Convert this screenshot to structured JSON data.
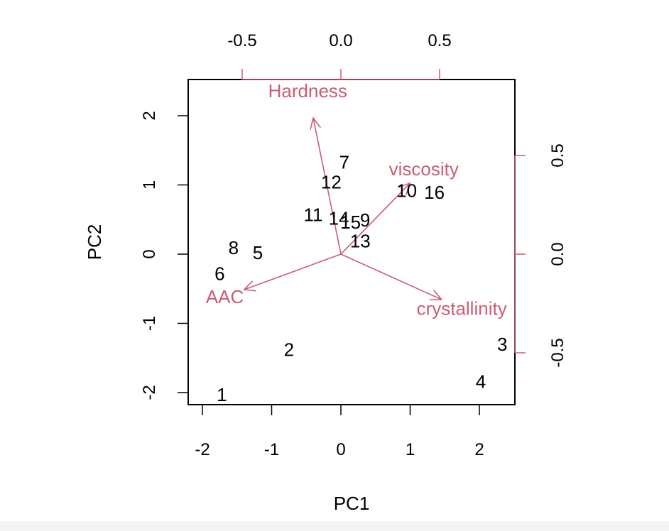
{
  "chart_data": {
    "type": "scatter",
    "xlabel": "PC1",
    "ylabel": "PC2",
    "xlim": [
      -2.2,
      2.5
    ],
    "ylim": [
      -2.15,
      2.5
    ],
    "x_ticks": [
      "-2",
      "-1",
      "0",
      "1",
      "2"
    ],
    "y_ticks": [
      "-2",
      "-1",
      "0",
      "1",
      "2"
    ],
    "loading_x_ticks": [
      "-0.5",
      "0.0",
      "0.5"
    ],
    "loading_y_ticks": [
      "-0.5",
      "0.0",
      "0.5"
    ],
    "loading_color": "#cd5c72",
    "observations": [
      {
        "label": "1",
        "x": -1.72,
        "y": -2.03
      },
      {
        "label": "2",
        "x": -0.75,
        "y": -1.38
      },
      {
        "label": "3",
        "x": 2.33,
        "y": -1.3
      },
      {
        "label": "4",
        "x": 2.02,
        "y": -1.84
      },
      {
        "label": "5",
        "x": -1.2,
        "y": 0.02
      },
      {
        "label": "6",
        "x": -1.75,
        "y": -0.28
      },
      {
        "label": "7",
        "x": 0.05,
        "y": 1.33
      },
      {
        "label": "8",
        "x": -1.55,
        "y": 0.09
      },
      {
        "label": "9",
        "x": 0.35,
        "y": 0.49
      },
      {
        "label": "10",
        "x": 0.95,
        "y": 0.92
      },
      {
        "label": "11",
        "x": -0.4,
        "y": 0.57
      },
      {
        "label": "12",
        "x": -0.14,
        "y": 1.04
      },
      {
        "label": "13",
        "x": 0.28,
        "y": 0.19
      },
      {
        "label": "14",
        "x": -0.03,
        "y": 0.52
      },
      {
        "label": "15",
        "x": 0.14,
        "y": 0.46
      },
      {
        "label": "16",
        "x": 1.35,
        "y": 0.89
      }
    ],
    "loadings": [
      {
        "name": "Hardness",
        "x": -0.14,
        "y": 0.69
      },
      {
        "name": "viscosity",
        "x": 0.35,
        "y": 0.36
      },
      {
        "name": "crystallinity",
        "x": 0.51,
        "y": -0.23
      },
      {
        "name": "AAC",
        "x": -0.49,
        "y": -0.18
      }
    ]
  }
}
